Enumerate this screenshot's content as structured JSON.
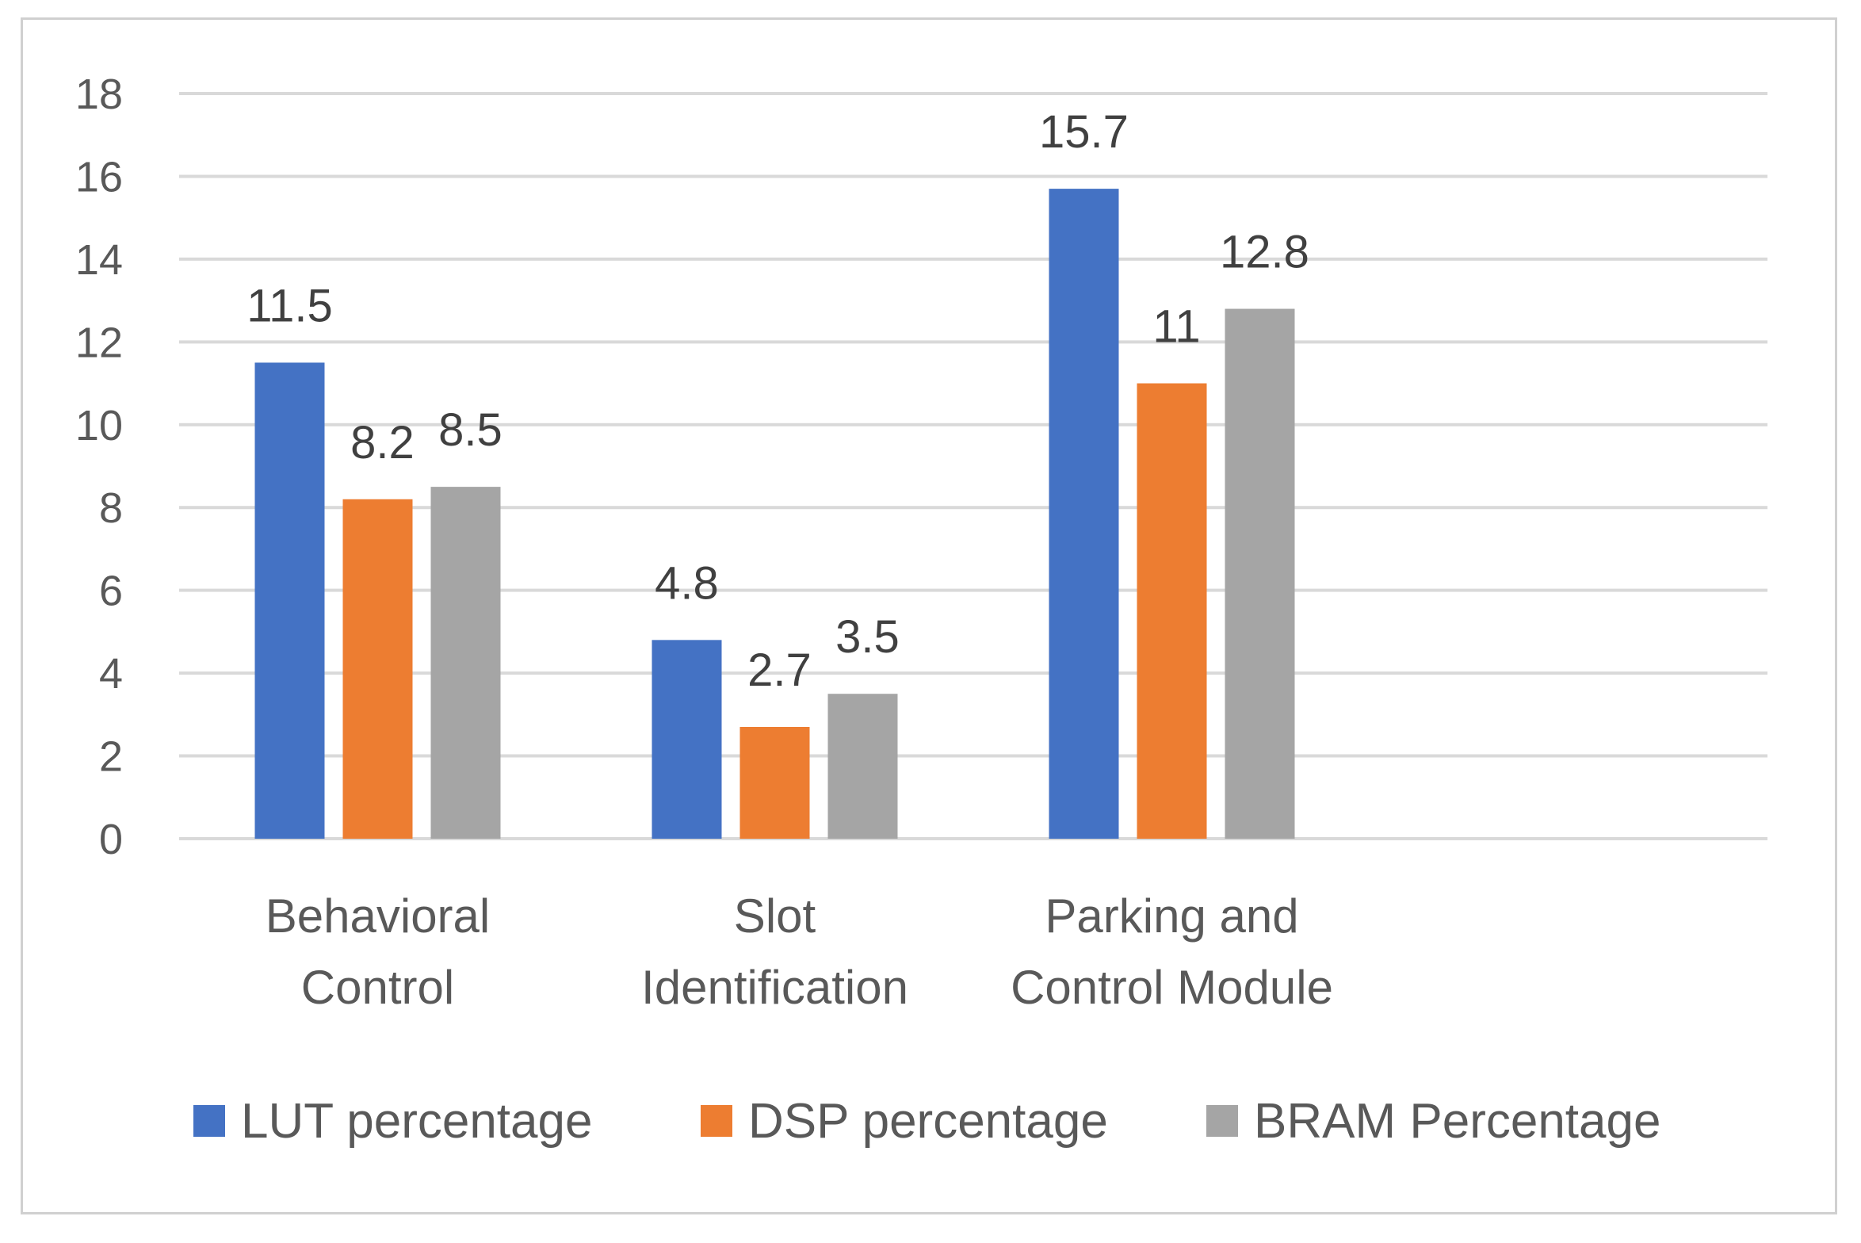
{
  "chart_data": {
    "type": "bar",
    "categories": [
      [
        "Behavioral",
        "Control"
      ],
      [
        "Slot",
        "Identification"
      ],
      [
        "Parking and",
        "Control Module"
      ]
    ],
    "series": [
      {
        "name": "LUT percentage",
        "color": "#4472C4",
        "values": [
          11.5,
          4.8,
          15.7
        ]
      },
      {
        "name": "DSP percentage",
        "color": "#ED7D31",
        "values": [
          8.2,
          2.7,
          11
        ]
      },
      {
        "name": "BRAM Percentage",
        "color": "#A5A5A5",
        "values": [
          8.5,
          3.5,
          12.8
        ]
      }
    ],
    "ylim": [
      0,
      18
    ],
    "yticks": [
      0,
      2,
      4,
      6,
      8,
      10,
      12,
      14,
      16,
      18
    ],
    "grid": true,
    "legend": "bottom"
  }
}
